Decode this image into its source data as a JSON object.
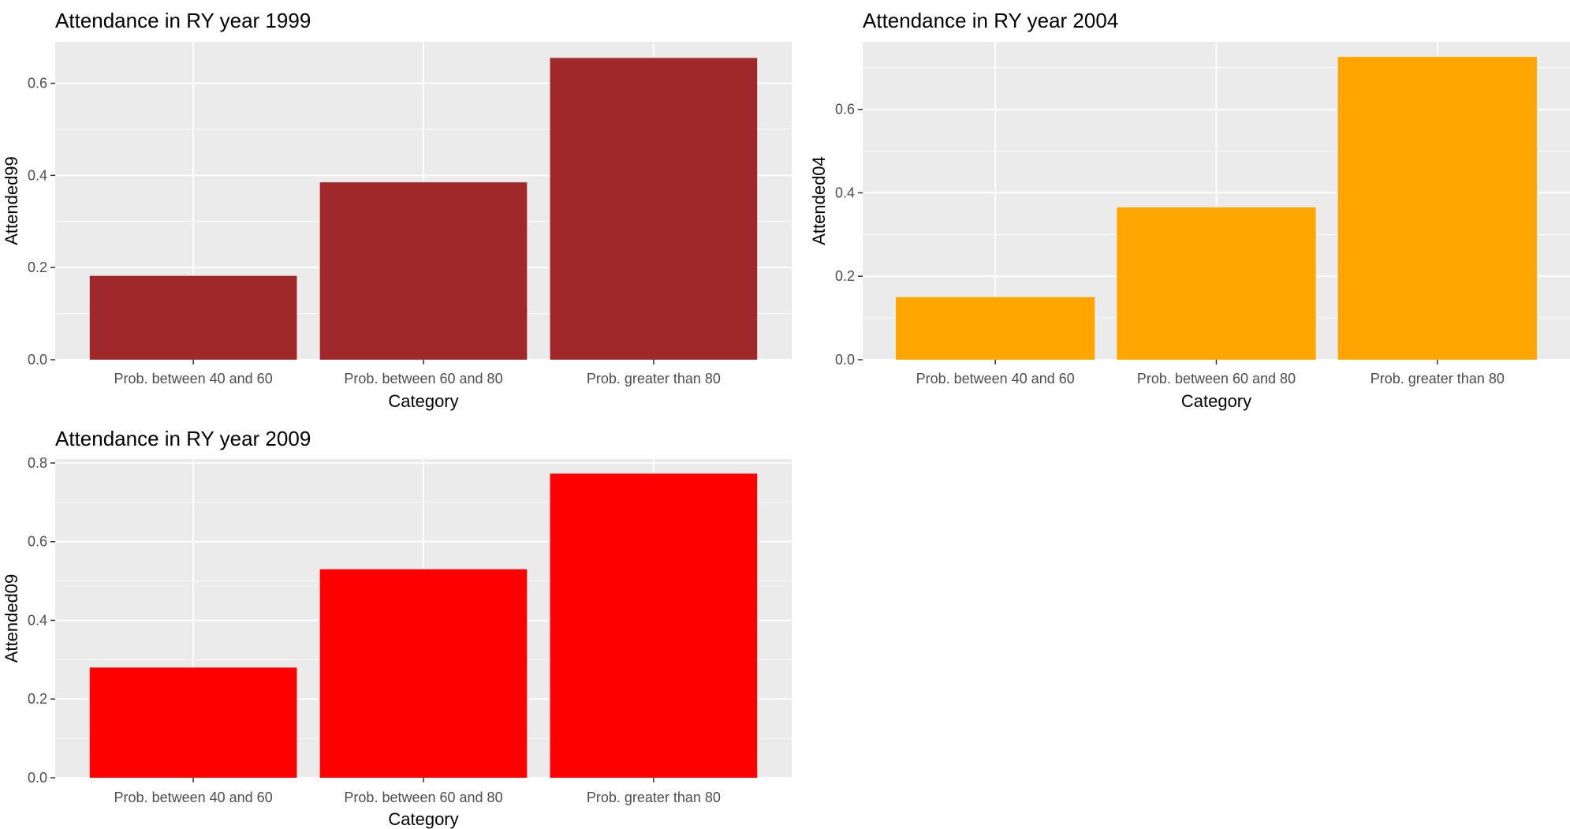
{
  "chart_data": [
    {
      "type": "bar",
      "title": "Attendance in RY year 1999",
      "xlabel": "Category",
      "ylabel": "Attended99",
      "categories": [
        "Prob. between 40 and 60",
        "Prob. between 60 and 80",
        "Prob. greater than 80"
      ],
      "values": [
        0.182,
        0.385,
        0.655
      ],
      "ylim": [
        0,
        0.69
      ],
      "yticks": [
        0.0,
        0.2,
        0.4,
        0.6
      ],
      "ytick_labels": [
        "0.0",
        "0.2",
        "0.4",
        "0.6"
      ],
      "color": "#a0282b",
      "grid": true,
      "legend": "none"
    },
    {
      "type": "bar",
      "title": "Attendance in RY year 2004",
      "xlabel": "Category",
      "ylabel": "Attended04",
      "categories": [
        "Prob. between 40 and 60",
        "Prob. between 60 and 80",
        "Prob. greater than 80"
      ],
      "values": [
        0.15,
        0.365,
        0.726
      ],
      "ylim": [
        0,
        0.762
      ],
      "yticks": [
        0.0,
        0.2,
        0.4,
        0.6
      ],
      "ytick_labels": [
        "0.0",
        "0.2",
        "0.4",
        "0.6"
      ],
      "color": "#ffa500",
      "grid": true,
      "legend": "none"
    },
    {
      "type": "bar",
      "title": "Attendance in RY year 2009",
      "xlabel": "Category",
      "ylabel": "Attended09",
      "categories": [
        "Prob. between 40 and 60",
        "Prob. between 60 and 80",
        "Prob. greater than 80"
      ],
      "values": [
        0.28,
        0.53,
        0.773
      ],
      "ylim": [
        0,
        0.81
      ],
      "yticks": [
        0.0,
        0.2,
        0.4,
        0.6,
        0.8
      ],
      "ytick_labels": [
        "0.0",
        "0.2",
        "0.4",
        "0.6",
        "0.8"
      ],
      "color": "#ff0000",
      "grid": true,
      "legend": "none"
    }
  ]
}
